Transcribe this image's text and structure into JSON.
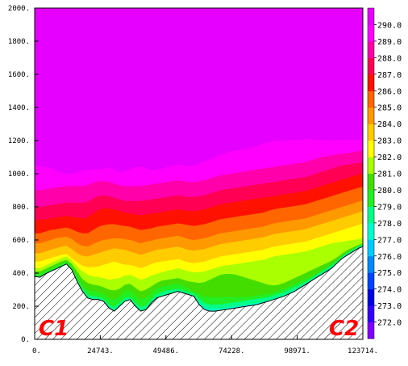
{
  "chart_data": {
    "type": "heatmap",
    "xlim": [
      0,
      123714
    ],
    "ylim": [
      0,
      2000
    ],
    "x_tick_labels": [
      {
        "v": 0,
        "label": "0."
      },
      {
        "v": 24743,
        "label": "24743."
      },
      {
        "v": 49486,
        "label": "49486."
      },
      {
        "v": 74228,
        "label": "74228."
      },
      {
        "v": 98971,
        "label": "98971."
      },
      {
        "v": 123714,
        "label": "123714."
      }
    ],
    "y_tick_labels": [
      {
        "v": 0,
        "label": "0."
      },
      {
        "v": 200,
        "label": "200."
      },
      {
        "v": 400,
        "label": "400."
      },
      {
        "v": 600,
        "label": "600."
      },
      {
        "v": 800,
        "label": "800."
      },
      {
        "v": 1000,
        "label": "1000."
      },
      {
        "v": 1200,
        "label": "1200."
      },
      {
        "v": 1400,
        "label": "1400."
      },
      {
        "v": 1600,
        "label": "1600."
      },
      {
        "v": 1800,
        "label": "1800."
      },
      {
        "v": 2000,
        "label": "2000."
      }
    ],
    "colorbar": {
      "labels": [
        "272.0",
        "273.0",
        "274.0",
        "275.0",
        "276.0",
        "277.0",
        "278.0",
        "279.0",
        "280.0",
        "281.0",
        "282.0",
        "283.0",
        "284.0",
        "285.0",
        "286.0",
        "287.0",
        "288.0",
        "289.0",
        "290.0"
      ],
      "colors": [
        "#8000ff",
        "#3300ff",
        "#0000e6",
        "#0044ff",
        "#0088ff",
        "#00ccff",
        "#00ffcc",
        "#00ff88",
        "#22ee22",
        "#44dd00",
        "#aaff00",
        "#ffff00",
        "#ffcc00",
        "#ff9900",
        "#ff6600",
        "#ff1100",
        "#ff0055",
        "#ff00aa",
        "#ff00ff",
        "#e600ff"
      ]
    },
    "x": [
      0,
      2000,
      4000,
      6000,
      8000,
      10000,
      12000,
      14000,
      16000,
      18000,
      20000,
      22000,
      24000,
      26000,
      28000,
      30000,
      32000,
      34000,
      36000,
      38000,
      40000,
      42000,
      44000,
      46000,
      48000,
      50000,
      52000,
      54000,
      56000,
      58000,
      60000,
      62000,
      64000,
      66000,
      68000,
      70000,
      72000,
      74000,
      76000,
      78000,
      80000,
      82000,
      84000,
      86000,
      88000,
      90000,
      92000,
      94000,
      96000,
      98000,
      100000,
      102000,
      104000,
      106000,
      108000,
      110000,
      112000,
      114000,
      116000,
      118000,
      120000,
      122000,
      123714
    ],
    "terrain": [
      380,
      375,
      395,
      410,
      425,
      440,
      455,
      420,
      350,
      290,
      250,
      240,
      240,
      230,
      190,
      170,
      200,
      230,
      240,
      200,
      170,
      180,
      220,
      250,
      260,
      270,
      280,
      290,
      280,
      270,
      260,
      210,
      180,
      170,
      170,
      175,
      180,
      185,
      190,
      195,
      200,
      205,
      210,
      220,
      230,
      240,
      250,
      260,
      275,
      290,
      310,
      330,
      350,
      370,
      390,
      410,
      430,
      460,
      490,
      510,
      530,
      550,
      560
    ],
    "contour_levels": [
      {
        "value": 277.0,
        "color": "#00ccff",
        "heights": [
          380,
          375,
          395,
          410,
          425,
          440,
          455,
          420,
          350,
          290,
          250,
          240,
          240,
          230,
          190,
          170,
          200,
          230,
          240,
          200,
          170,
          180,
          220,
          250,
          260,
          270,
          280,
          290,
          280,
          270,
          260,
          210,
          180,
          170,
          170,
          175,
          180,
          185,
          190,
          195,
          200,
          205,
          210,
          220,
          230,
          240,
          250,
          260,
          275,
          290,
          310,
          330,
          350,
          370,
          390,
          410,
          430,
          460,
          490,
          510,
          530,
          550,
          560
        ]
      },
      {
        "value": 278.0,
        "color": "#00ffcc",
        "heights": [
          380,
          375,
          395,
          410,
          425,
          440,
          455,
          420,
          350,
          290,
          250,
          240,
          240,
          230,
          190,
          170,
          200,
          230,
          240,
          200,
          170,
          180,
          220,
          250,
          260,
          270,
          280,
          290,
          280,
          270,
          260,
          220,
          195,
          185,
          185,
          185,
          190,
          195,
          200,
          205,
          210,
          215,
          220,
          225,
          235,
          245,
          255,
          265,
          280,
          295,
          315,
          335,
          355,
          375,
          395,
          415,
          435,
          465,
          495,
          515,
          535,
          555,
          565
        ]
      },
      {
        "value": 279.0,
        "color": "#00ff88",
        "heights": [
          385,
          380,
          400,
          415,
          430,
          445,
          460,
          425,
          360,
          305,
          270,
          260,
          255,
          245,
          210,
          195,
          220,
          250,
          255,
          220,
          195,
          205,
          240,
          270,
          285,
          295,
          300,
          305,
          295,
          285,
          275,
          245,
          220,
          210,
          210,
          210,
          215,
          220,
          225,
          230,
          235,
          240,
          245,
          250,
          255,
          265,
          275,
          285,
          300,
          315,
          330,
          345,
          365,
          385,
          405,
          425,
          445,
          470,
          500,
          520,
          540,
          560,
          570
        ]
      },
      {
        "value": 280.0,
        "color": "#22ee22",
        "heights": [
          395,
          395,
          410,
          425,
          440,
          455,
          470,
          440,
          385,
          330,
          300,
          290,
          285,
          275,
          250,
          240,
          260,
          290,
          295,
          265,
          240,
          250,
          280,
          305,
          320,
          325,
          330,
          335,
          325,
          305,
          290,
          275,
          260,
          255,
          255,
          255,
          255,
          255,
          255,
          255,
          255,
          260,
          265,
          270,
          275,
          285,
          295,
          305,
          320,
          335,
          350,
          365,
          380,
          395,
          415,
          435,
          455,
          480,
          505,
          525,
          545,
          565,
          575
        ]
      },
      {
        "value": 281.0,
        "color": "#44dd00",
        "heights": [
          410,
          410,
          425,
          440,
          455,
          470,
          480,
          455,
          410,
          365,
          340,
          330,
          325,
          315,
          300,
          295,
          305,
          330,
          335,
          310,
          290,
          300,
          320,
          340,
          355,
          360,
          365,
          370,
          360,
          350,
          345,
          340,
          345,
          360,
          375,
          390,
          395,
          395,
          390,
          380,
          370,
          360,
          350,
          340,
          330,
          325,
          330,
          340,
          355,
          370,
          385,
          400,
          415,
          430,
          445,
          460,
          475,
          495,
          520,
          540,
          555,
          570,
          580
        ]
      },
      {
        "value": 282.0,
        "color": "#aaff00",
        "heights": [
          430,
          430,
          445,
          460,
          475,
          490,
          500,
          475,
          440,
          410,
          390,
          380,
          375,
          370,
          360,
          365,
          370,
          385,
          390,
          375,
          360,
          370,
          385,
          395,
          405,
          415,
          420,
          430,
          420,
          410,
          405,
          405,
          410,
          420,
          430,
          440,
          445,
          450,
          455,
          460,
          465,
          470,
          475,
          480,
          490,
          500,
          505,
          510,
          515,
          520,
          525,
          530,
          540,
          550,
          560,
          570,
          580,
          585,
          590,
          595,
          600,
          605,
          610
        ]
      },
      {
        "value": 283.0,
        "color": "#ffff00",
        "heights": [
          470,
          470,
          480,
          490,
          500,
          510,
          515,
          490,
          465,
          445,
          435,
          435,
          440,
          450,
          460,
          470,
          460,
          450,
          450,
          440,
          430,
          440,
          455,
          465,
          470,
          475,
          480,
          485,
          475,
          465,
          460,
          465,
          470,
          480,
          490,
          500,
          505,
          510,
          515,
          520,
          525,
          530,
          535,
          540,
          550,
          560,
          565,
          570,
          575,
          580,
          585,
          590,
          600,
          610,
          620,
          630,
          640,
          650,
          660,
          670,
          680,
          690,
          700
        ]
      },
      {
        "value": 284.0,
        "color": "#ffcc00",
        "heights": [
          520,
          520,
          530,
          540,
          550,
          560,
          565,
          545,
          520,
          505,
          500,
          510,
          520,
          530,
          540,
          550,
          545,
          540,
          530,
          520,
          510,
          520,
          530,
          540,
          545,
          550,
          555,
          560,
          550,
          540,
          535,
          540,
          545,
          555,
          565,
          575,
          580,
          585,
          590,
          595,
          600,
          605,
          610,
          615,
          625,
          635,
          640,
          645,
          650,
          655,
          660,
          665,
          675,
          685,
          695,
          705,
          715,
          725,
          735,
          745,
          755,
          765,
          775
        ]
      },
      {
        "value": 285.0,
        "color": "#ff9900",
        "heights": [
          580,
          580,
          590,
          600,
          610,
          615,
          620,
          605,
          580,
          565,
          560,
          575,
          590,
          600,
          605,
          610,
          610,
          605,
          600,
          590,
          580,
          590,
          595,
          605,
          610,
          615,
          620,
          625,
          615,
          605,
          600,
          605,
          610,
          620,
          630,
          640,
          645,
          650,
          655,
          660,
          665,
          670,
          675,
          680,
          690,
          700,
          705,
          710,
          715,
          720,
          725,
          730,
          740,
          750,
          760,
          770,
          780,
          790,
          800,
          810,
          820,
          830,
          840
        ]
      },
      {
        "value": 286.0,
        "color": "#ff6600",
        "heights": [
          640,
          640,
          650,
          660,
          665,
          670,
          675,
          665,
          650,
          640,
          640,
          660,
          680,
          690,
          695,
          695,
          690,
          685,
          680,
          670,
          660,
          665,
          670,
          680,
          685,
          690,
          695,
          700,
          695,
          690,
          685,
          690,
          695,
          705,
          715,
          725,
          730,
          735,
          740,
          745,
          750,
          755,
          760,
          765,
          775,
          785,
          790,
          795,
          800,
          805,
          810,
          815,
          825,
          835,
          845,
          855,
          865,
          875,
          885,
          895,
          905,
          915,
          920
        ]
      },
      {
        "value": 287.0,
        "color": "#ff1100",
        "heights": [
          720,
          720,
          725,
          730,
          735,
          740,
          745,
          740,
          735,
          730,
          735,
          760,
          780,
          790,
          790,
          785,
          775,
          765,
          760,
          755,
          750,
          755,
          760,
          765,
          770,
          775,
          780,
          785,
          780,
          775,
          775,
          780,
          785,
          795,
          805,
          815,
          820,
          825,
          830,
          835,
          840,
          845,
          850,
          855,
          860,
          865,
          870,
          875,
          880,
          885,
          890,
          895,
          905,
          915,
          925,
          935,
          945,
          955,
          965,
          975,
          985,
          995,
          1000
        ]
      },
      {
        "value": 288.0,
        "color": "#ff0055",
        "heights": [
          800,
          800,
          805,
          810,
          815,
          820,
          825,
          825,
          825,
          825,
          830,
          850,
          865,
          870,
          865,
          855,
          845,
          835,
          835,
          835,
          835,
          840,
          845,
          850,
          855,
          860,
          865,
          870,
          865,
          860,
          860,
          865,
          870,
          880,
          890,
          900,
          905,
          910,
          915,
          920,
          925,
          930,
          935,
          940,
          945,
          950,
          955,
          960,
          965,
          970,
          975,
          980,
          990,
          1000,
          1010,
          1020,
          1030,
          1040,
          1050,
          1055,
          1060,
          1065,
          1070
        ]
      },
      {
        "value": 289.0,
        "color": "#ff00aa",
        "heights": [
          900,
          900,
          905,
          910,
          915,
          920,
          925,
          925,
          925,
          925,
          930,
          945,
          955,
          955,
          950,
          940,
          930,
          925,
          925,
          925,
          925,
          930,
          935,
          940,
          945,
          950,
          955,
          960,
          955,
          950,
          950,
          955,
          960,
          970,
          980,
          990,
          995,
          1000,
          1005,
          1010,
          1015,
          1020,
          1025,
          1030,
          1035,
          1040,
          1045,
          1050,
          1055,
          1060,
          1065,
          1070,
          1080,
          1090,
          1100,
          1105,
          1110,
          1115,
          1120,
          1125,
          1130,
          1135,
          1140
        ]
      },
      {
        "value": 290.0,
        "color": "#ff00ff",
        "heights": [
          1050,
          1045,
          1040,
          1035,
          1020,
          1005,
          1000,
          1000,
          1005,
          1015,
          1020,
          1025,
          1030,
          1025,
          1040,
          1020,
          1010,
          1015,
          1030,
          1035,
          1045,
          1030,
          1020,
          1025,
          1030,
          1040,
          1050,
          1055,
          1050,
          1045,
          1050,
          1060,
          1075,
          1085,
          1100,
          1110,
          1125,
          1135,
          1140,
          1145,
          1150,
          1160,
          1170,
          1180,
          1190,
          1195,
          1200,
          1200,
          1200,
          1205,
          1205,
          1210,
          1210,
          1205,
          1205,
          1200,
          1200,
          1200,
          1205,
          1205,
          1205,
          1205,
          1210
        ]
      }
    ],
    "background_color": "#e600ff",
    "annotations": [
      {
        "id": "left",
        "label": "C1"
      },
      {
        "id": "right",
        "label": "C2"
      }
    ]
  }
}
